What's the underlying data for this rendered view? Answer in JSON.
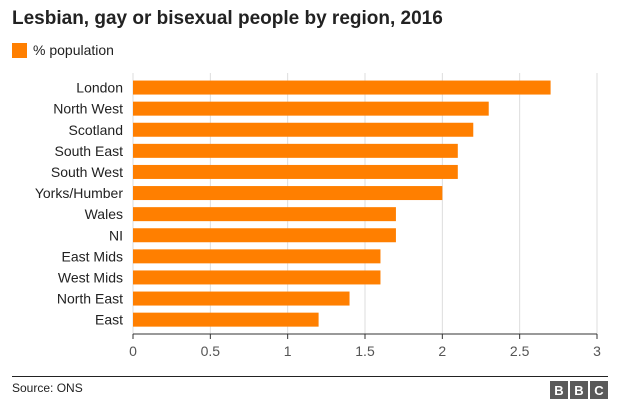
{
  "chart_data": {
    "type": "bar",
    "orientation": "horizontal",
    "title": "Lesbian, gay or bisexual people by region, 2016",
    "legend": "% population",
    "color": "#ff7f00",
    "categories": [
      "London",
      "North West",
      "Scotland",
      "South East",
      "South West",
      "Yorks/Humber",
      "Wales",
      "NI",
      "East Mids",
      "West Mids",
      "North East",
      "East"
    ],
    "values": [
      2.7,
      2.3,
      2.2,
      2.1,
      2.1,
      2.0,
      1.7,
      1.7,
      1.6,
      1.6,
      1.4,
      1.2
    ],
    "xlim": [
      0,
      3
    ],
    "xticks": [
      0,
      0.5,
      1,
      1.5,
      2,
      2.5,
      3
    ],
    "xtick_labels": [
      "0",
      "0.5",
      "1",
      "1.5",
      "2",
      "2.5",
      "3"
    ],
    "grid": true
  },
  "footer": {
    "source": "Source: ONS",
    "logo_letters": [
      "B",
      "B",
      "C"
    ]
  }
}
